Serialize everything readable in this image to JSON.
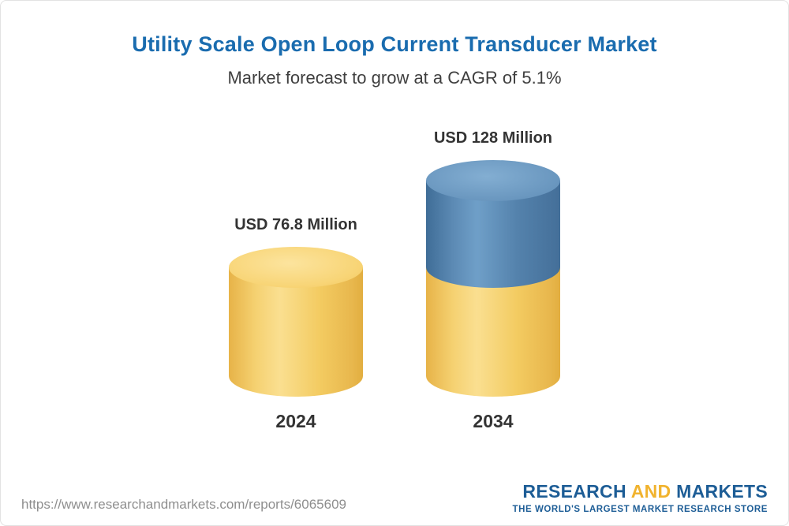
{
  "chart_data": {
    "type": "bar",
    "variant": "3d-cylinder",
    "title": "Utility Scale Open Loop Current Transducer Market",
    "subtitle": "Market forecast to grow at a CAGR of 5.1%",
    "cagr_percent": 5.1,
    "unit": "USD Million",
    "categories": [
      "2024",
      "2034"
    ],
    "values": [
      76.8,
      128
    ],
    "value_labels": [
      "USD 76.8 Million",
      "USD 128 Million"
    ],
    "ylim": [
      0,
      128
    ],
    "grid": false,
    "legend": "none",
    "colors": {
      "base_segment": "#f3ca5e",
      "base_segment_top": "#f8d577",
      "growth_segment": "#4e7da9",
      "growth_segment_top": "#6b98c0"
    }
  },
  "header": {
    "title_color": "#1a6caf",
    "subtitle_color": "#3f3f3f"
  },
  "footer": {
    "report_url": "https://www.researchandmarkets.com/reports/6065609",
    "logo": {
      "word1": "RESEARCH",
      "word2": "AND",
      "word3": "MARKETS",
      "tagline": "THE WORLD'S LARGEST MARKET RESEARCH STORE",
      "blue": "#1d5d96",
      "gold": "#f1b32e"
    }
  }
}
